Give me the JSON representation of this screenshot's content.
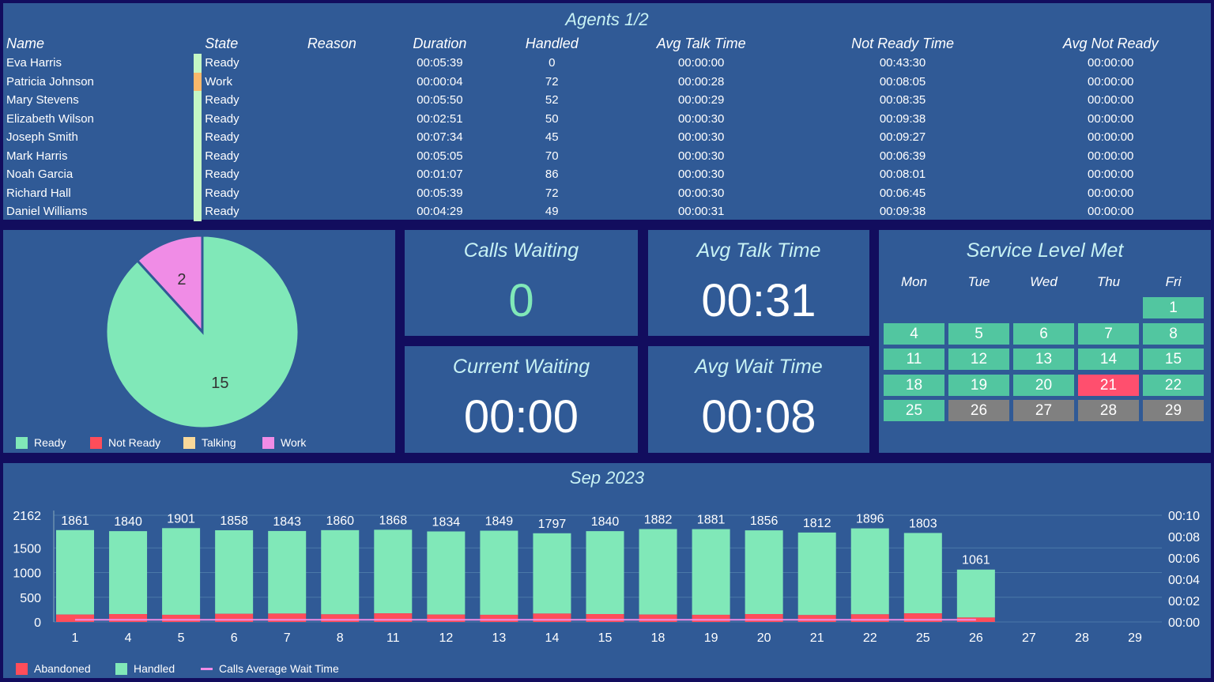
{
  "agents": {
    "title": "Agents 1/2",
    "columns": [
      "Name",
      "State",
      "Reason",
      "Duration",
      "Handled",
      "Avg Talk Time",
      "Not Ready Time",
      "Avg Not Ready"
    ],
    "rows": [
      [
        "Eva Harris",
        "Ready",
        "",
        "00:05:39",
        "0",
        "00:00:00",
        "00:43:30",
        "00:00:00"
      ],
      [
        "Patricia Johnson",
        "Work",
        "",
        "00:00:04",
        "72",
        "00:00:28",
        "00:08:05",
        "00:00:00"
      ],
      [
        "Mary Stevens",
        "Ready",
        "",
        "00:05:50",
        "52",
        "00:00:29",
        "00:08:35",
        "00:00:00"
      ],
      [
        "Elizabeth Wilson",
        "Ready",
        "",
        "00:02:51",
        "50",
        "00:00:30",
        "00:09:38",
        "00:00:00"
      ],
      [
        "Joseph Smith",
        "Ready",
        "",
        "00:07:34",
        "45",
        "00:00:30",
        "00:09:27",
        "00:00:00"
      ],
      [
        "Mark Harris",
        "Ready",
        "",
        "00:05:05",
        "70",
        "00:00:30",
        "00:06:39",
        "00:00:00"
      ],
      [
        "Noah Garcia",
        "Ready",
        "",
        "00:01:07",
        "86",
        "00:00:30",
        "00:08:01",
        "00:00:00"
      ],
      [
        "Richard Hall",
        "Ready",
        "",
        "00:05:39",
        "72",
        "00:00:30",
        "00:06:45",
        "00:00:00"
      ],
      [
        "Daniel Williams",
        "Ready",
        "",
        "00:04:29",
        "49",
        "00:00:31",
        "00:09:38",
        "00:00:00"
      ]
    ],
    "state_colors": {
      "Ready": "#c4f7c4",
      "Work": "#f9b86a"
    }
  },
  "pie": {
    "slices": [
      {
        "label": "Ready",
        "value": 15,
        "color": "#80e8b8"
      },
      {
        "label": "Work",
        "value": 2,
        "color": "#f08ce6"
      }
    ],
    "legend": [
      {
        "label": "Ready",
        "color": "#80e8b8"
      },
      {
        "label": "Not Ready",
        "color": "#ff4d5a"
      },
      {
        "label": "Talking",
        "color": "#f9d89a"
      },
      {
        "label": "Work",
        "color": "#f08ce6"
      }
    ]
  },
  "kpis": {
    "calls_waiting": {
      "title": "Calls Waiting",
      "value": "0"
    },
    "avg_talk": {
      "title": "Avg Talk Time",
      "value": "00:31"
    },
    "current_waiting": {
      "title": "Current Waiting",
      "value": "00:00"
    },
    "avg_wait": {
      "title": "Avg Wait Time",
      "value": "00:08"
    }
  },
  "calendar": {
    "title": "Service Level Met",
    "days": [
      "Mon",
      "Tue",
      "Wed",
      "Thu",
      "Fri"
    ],
    "cells": [
      {
        "d": "1",
        "s": "met"
      },
      {
        "d": "4",
        "s": "met"
      },
      {
        "d": "5",
        "s": "met"
      },
      {
        "d": "6",
        "s": "met"
      },
      {
        "d": "7",
        "s": "met"
      },
      {
        "d": "8",
        "s": "met"
      },
      {
        "d": "11",
        "s": "met"
      },
      {
        "d": "12",
        "s": "met"
      },
      {
        "d": "13",
        "s": "met"
      },
      {
        "d": "14",
        "s": "met"
      },
      {
        "d": "15",
        "s": "met"
      },
      {
        "d": "18",
        "s": "met"
      },
      {
        "d": "19",
        "s": "met"
      },
      {
        "d": "20",
        "s": "met"
      },
      {
        "d": "21",
        "s": "missed"
      },
      {
        "d": "22",
        "s": "met"
      },
      {
        "d": "25",
        "s": "met"
      },
      {
        "d": "26",
        "s": "future"
      },
      {
        "d": "27",
        "s": "future"
      },
      {
        "d": "28",
        "s": "future"
      },
      {
        "d": "29",
        "s": "future"
      }
    ],
    "colors": {
      "met": "#52c6a0",
      "missed": "#ff4f6e",
      "future": "#808080"
    }
  },
  "chart_data": {
    "type": "bar",
    "title": "Sep 2023",
    "categories": [
      "1",
      "4",
      "5",
      "6",
      "7",
      "8",
      "11",
      "12",
      "13",
      "14",
      "15",
      "18",
      "19",
      "20",
      "21",
      "22",
      "25",
      "26",
      "27",
      "28",
      "29"
    ],
    "totals": [
      1861,
      1840,
      1901,
      1858,
      1843,
      1860,
      1868,
      1834,
      1849,
      1797,
      1840,
      1882,
      1881,
      1856,
      1812,
      1896,
      1803,
      1061,
      null,
      null,
      null
    ],
    "series": [
      {
        "name": "Abandoned",
        "color": "#ff4d5a",
        "values": [
          150,
          160,
          145,
          165,
          170,
          155,
          175,
          150,
          145,
          170,
          160,
          150,
          145,
          160,
          140,
          155,
          175,
          90,
          null,
          null,
          null
        ]
      },
      {
        "name": "Handled",
        "color": "#80e8b8"
      },
      {
        "name": "Calls Average Wait Time",
        "color": "#f08ce6",
        "values_seconds": [
          0.2,
          0.2,
          0.2,
          0.2,
          0.2,
          0.2,
          0.2,
          0.2,
          0.2,
          0.2,
          0.2,
          0.2,
          0.2,
          0.2,
          0.2,
          0.2,
          0.2,
          0.2,
          null,
          null,
          null
        ]
      }
    ],
    "y_ticks": [
      "0",
      "500",
      "1000",
      "1500",
      "2162"
    ],
    "ylim": [
      0,
      2162
    ],
    "y2_ticks": [
      "00:00",
      "00:02",
      "00:04",
      "00:06",
      "00:08",
      "00:10"
    ],
    "y2lim": [
      0,
      10
    ],
    "grid": true,
    "legend_position": "bottom-left"
  }
}
